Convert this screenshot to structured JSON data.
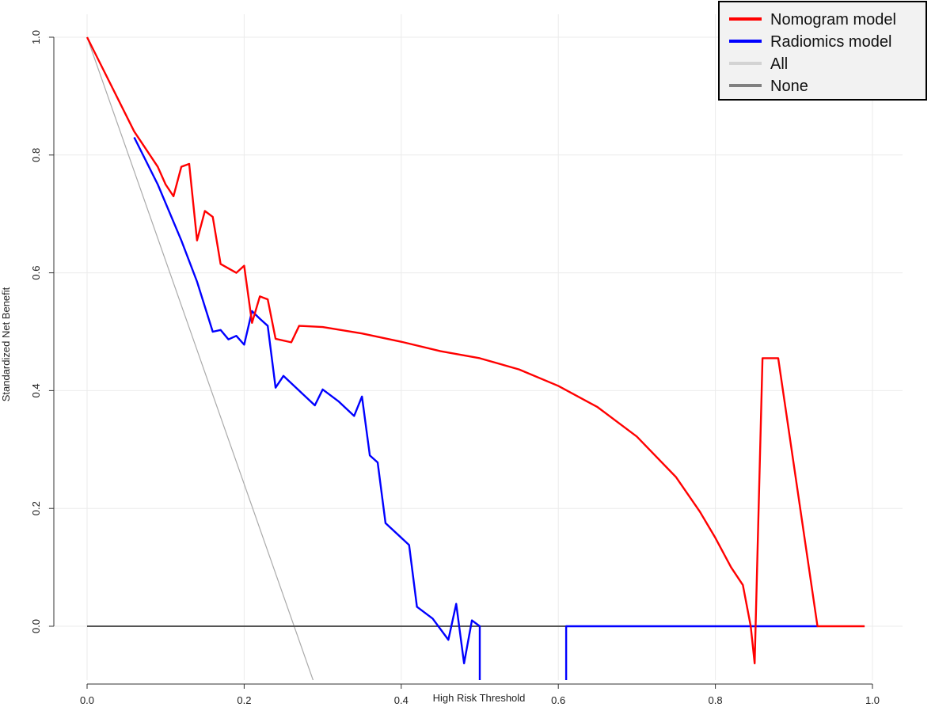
{
  "chart_data": {
    "type": "line",
    "xlabel": "High Risk Threshold",
    "ylabel": "Standardized Net Benefit",
    "xlim": [
      0,
      1
    ],
    "ylim": [
      -0.1,
      1.0
    ],
    "x_ticks": [
      0.0,
      0.2,
      0.4,
      0.6,
      0.8,
      1.0
    ],
    "x_tick_labels": [
      "0.0",
      "0.2",
      "0.4",
      "0.6",
      "0.8",
      "1.0"
    ],
    "y_ticks": [
      0.0,
      0.2,
      0.4,
      0.6,
      0.8,
      1.0
    ],
    "y_tick_labels": [
      "0.0",
      "0.2",
      "0.4",
      "0.6",
      "0.8",
      "1.0"
    ],
    "grid": true,
    "legend_position": "top-right",
    "series": [
      {
        "name": "Nomogram model",
        "color": "#ff0000",
        "points": [
          [
            0.0,
            1.0
          ],
          [
            0.03,
            0.92
          ],
          [
            0.06,
            0.84
          ],
          [
            0.08,
            0.8
          ],
          [
            0.09,
            0.78
          ],
          [
            0.1,
            0.75
          ],
          [
            0.11,
            0.73
          ],
          [
            0.12,
            0.78
          ],
          [
            0.13,
            0.785
          ],
          [
            0.14,
            0.655
          ],
          [
            0.15,
            0.705
          ],
          [
            0.16,
            0.695
          ],
          [
            0.17,
            0.615
          ],
          [
            0.19,
            0.6
          ],
          [
            0.2,
            0.612
          ],
          [
            0.21,
            0.515
          ],
          [
            0.22,
            0.56
          ],
          [
            0.23,
            0.555
          ],
          [
            0.24,
            0.488
          ],
          [
            0.26,
            0.482
          ],
          [
            0.27,
            0.51
          ],
          [
            0.3,
            0.508
          ],
          [
            0.35,
            0.497
          ],
          [
            0.4,
            0.483
          ],
          [
            0.45,
            0.467
          ],
          [
            0.5,
            0.455
          ],
          [
            0.55,
            0.436
          ],
          [
            0.6,
            0.408
          ],
          [
            0.65,
            0.372
          ],
          [
            0.7,
            0.322
          ],
          [
            0.75,
            0.253
          ],
          [
            0.78,
            0.195
          ],
          [
            0.8,
            0.15
          ],
          [
            0.82,
            0.1
          ],
          [
            0.835,
            0.07
          ],
          [
            0.845,
            0.0
          ],
          [
            0.85,
            -0.063
          ],
          [
            0.86,
            0.455
          ],
          [
            0.88,
            0.455
          ],
          [
            0.93,
            0.0
          ],
          [
            0.99,
            0.0
          ]
        ]
      },
      {
        "name": "Radiomics model",
        "color": "#0000ff",
        "points": [
          [
            0.06,
            0.83
          ],
          [
            0.09,
            0.75
          ],
          [
            0.12,
            0.655
          ],
          [
            0.14,
            0.585
          ],
          [
            0.16,
            0.5
          ],
          [
            0.17,
            0.503
          ],
          [
            0.18,
            0.487
          ],
          [
            0.19,
            0.493
          ],
          [
            0.2,
            0.478
          ],
          [
            0.21,
            0.535
          ],
          [
            0.22,
            0.522
          ],
          [
            0.23,
            0.51
          ],
          [
            0.24,
            0.405
          ],
          [
            0.25,
            0.425
          ],
          [
            0.27,
            0.4
          ],
          [
            0.29,
            0.375
          ],
          [
            0.3,
            0.402
          ],
          [
            0.32,
            0.382
          ],
          [
            0.34,
            0.357
          ],
          [
            0.35,
            0.39
          ],
          [
            0.36,
            0.29
          ],
          [
            0.37,
            0.278
          ],
          [
            0.38,
            0.175
          ],
          [
            0.41,
            0.138
          ],
          [
            0.42,
            0.033
          ],
          [
            0.44,
            0.013
          ],
          [
            0.46,
            -0.023
          ],
          [
            0.47,
            0.038
          ],
          [
            0.48,
            -0.063
          ],
          [
            0.49,
            0.01
          ],
          [
            0.5,
            0.0
          ],
          [
            0.5,
            -0.1
          ]
        ]
      },
      {
        "name": "Radiomics model",
        "color": "#0000ff",
        "legend": false,
        "points": [
          [
            0.61,
            -0.1
          ],
          [
            0.61,
            0.0
          ],
          [
            0.93,
            0.0
          ]
        ]
      },
      {
        "name": "All",
        "color": "#aaaaaa",
        "points": [
          [
            0.0,
            1.0
          ],
          [
            0.29,
            -0.1
          ]
        ]
      },
      {
        "name": "None",
        "color": "#555555",
        "points": [
          [
            0.0,
            0.0
          ],
          [
            0.99,
            0.0
          ]
        ]
      }
    ],
    "legend": [
      {
        "name": "Nomogram model",
        "color": "#ff0000"
      },
      {
        "name": "Radiomics model",
        "color": "#0000ff"
      },
      {
        "name": "All",
        "color": "#d3d3d3"
      },
      {
        "name": "None",
        "color": "#808080"
      }
    ]
  }
}
